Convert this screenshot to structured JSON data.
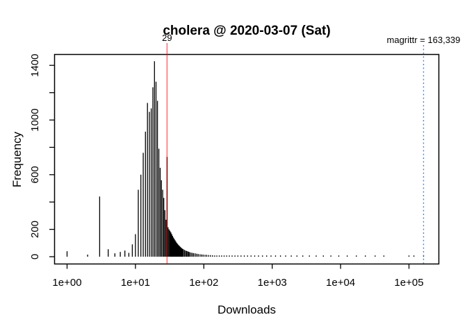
{
  "figure": {
    "background": "#ffffff",
    "box_color": "#000000"
  },
  "chart_data": {
    "type": "bar",
    "subtype": "histogram-log-x",
    "title": "cholera @ 2020-03-07 (Sat)",
    "xlabel": "Downloads",
    "ylabel": "Frequency",
    "x_scale": "log10",
    "xlim": [
      1,
      200000
    ],
    "ylim": [
      0,
      1430
    ],
    "grid": false,
    "legend": "none",
    "bar_color": "#000000",
    "x_ticks": [
      {
        "value": 1,
        "label": "1e+00"
      },
      {
        "value": 10,
        "label": "1e+01"
      },
      {
        "value": 100,
        "label": "1e+02"
      },
      {
        "value": 1000,
        "label": "1e+03"
      },
      {
        "value": 10000,
        "label": "1e+04"
      },
      {
        "value": 100000,
        "label": "1e+05"
      }
    ],
    "y_ticks": [
      {
        "value": 0,
        "label": "0"
      },
      {
        "value": 200,
        "label": "200"
      },
      {
        "value": 400,
        "label": ""
      },
      {
        "value": 600,
        "label": "600"
      },
      {
        "value": 800,
        "label": ""
      },
      {
        "value": 1000,
        "label": "1000"
      },
      {
        "value": 1200,
        "label": ""
      },
      {
        "value": 1400,
        "label": "1400"
      }
    ],
    "annotations": {
      "threshold": {
        "value": 29,
        "label": "29",
        "line_color": "#ff0000",
        "line_opacity": 0.5,
        "text_color": "#dd2222",
        "line_style": "solid"
      },
      "max_line": {
        "value": 163339,
        "label": "magrittr = 163,339",
        "line_color": "#1e90ff",
        "text_color": "#1e90ff",
        "line_style": "dotted"
      }
    },
    "points": [
      [
        1,
        40
      ],
      [
        2,
        15
      ],
      [
        3,
        440
      ],
      [
        4,
        55
      ],
      [
        5,
        25
      ],
      [
        6,
        35
      ],
      [
        7,
        45
      ],
      [
        8,
        28
      ],
      [
        9,
        90
      ],
      [
        10,
        165
      ],
      [
        11,
        490
      ],
      [
        12,
        600
      ],
      [
        13,
        760
      ],
      [
        14,
        915
      ],
      [
        15,
        1125
      ],
      [
        16,
        1060
      ],
      [
        17,
        1085
      ],
      [
        18,
        1240
      ],
      [
        19,
        1430
      ],
      [
        20,
        1280
      ],
      [
        21,
        1140
      ],
      [
        22,
        790
      ],
      [
        23,
        650
      ],
      [
        24,
        560
      ],
      [
        25,
        490
      ],
      [
        26,
        430
      ],
      [
        27,
        340
      ],
      [
        28,
        270
      ],
      [
        29,
        730
      ],
      [
        30,
        215
      ],
      [
        31,
        200
      ],
      [
        32,
        190
      ],
      [
        33,
        178
      ],
      [
        34,
        165
      ],
      [
        35,
        152
      ],
      [
        36,
        140
      ],
      [
        37,
        130
      ],
      [
        38,
        120
      ],
      [
        39,
        110
      ],
      [
        40,
        102
      ],
      [
        41,
        95
      ],
      [
        42,
        89
      ],
      [
        43,
        83
      ],
      [
        44,
        78
      ],
      [
        45,
        73
      ],
      [
        46,
        68
      ],
      [
        47,
        64
      ],
      [
        48,
        60
      ],
      [
        49,
        57
      ],
      [
        50,
        54
      ],
      [
        52,
        49
      ],
      [
        54,
        45
      ],
      [
        56,
        42
      ],
      [
        58,
        39
      ],
      [
        60,
        36
      ],
      [
        62,
        33
      ],
      [
        65,
        30
      ],
      [
        68,
        28
      ],
      [
        71,
        26
      ],
      [
        75,
        24
      ],
      [
        79,
        22
      ],
      [
        83,
        20
      ],
      [
        88,
        18
      ],
      [
        93,
        17
      ],
      [
        98,
        15
      ],
      [
        104,
        14
      ],
      [
        110,
        13
      ],
      [
        117,
        12
      ],
      [
        125,
        11
      ],
      [
        134,
        10
      ],
      [
        144,
        9
      ],
      [
        155,
        8
      ],
      [
        168,
        8
      ],
      [
        182,
        7
      ],
      [
        198,
        7
      ],
      [
        216,
        6
      ],
      [
        236,
        6
      ],
      [
        259,
        5
      ],
      [
        285,
        5
      ],
      [
        315,
        4
      ],
      [
        350,
        4
      ],
      [
        390,
        4
      ],
      [
        436,
        3
      ],
      [
        490,
        3
      ],
      [
        555,
        3
      ],
      [
        630,
        2
      ],
      [
        720,
        2
      ],
      [
        830,
        2
      ],
      [
        960,
        2
      ],
      [
        1120,
        2
      ],
      [
        1320,
        2
      ],
      [
        1570,
        1
      ],
      [
        1900,
        1
      ],
      [
        2300,
        1
      ],
      [
        2800,
        1
      ],
      [
        3500,
        1
      ],
      [
        4400,
        1
      ],
      [
        5600,
        1
      ],
      [
        7200,
        1
      ],
      [
        9400,
        1
      ],
      [
        12500,
        1
      ],
      [
        17000,
        1
      ],
      [
        23000,
        1
      ],
      [
        32000,
        1
      ],
      [
        43000,
        1
      ],
      [
        100000,
        1
      ],
      [
        118000,
        1
      ],
      [
        163339,
        1
      ]
    ]
  }
}
